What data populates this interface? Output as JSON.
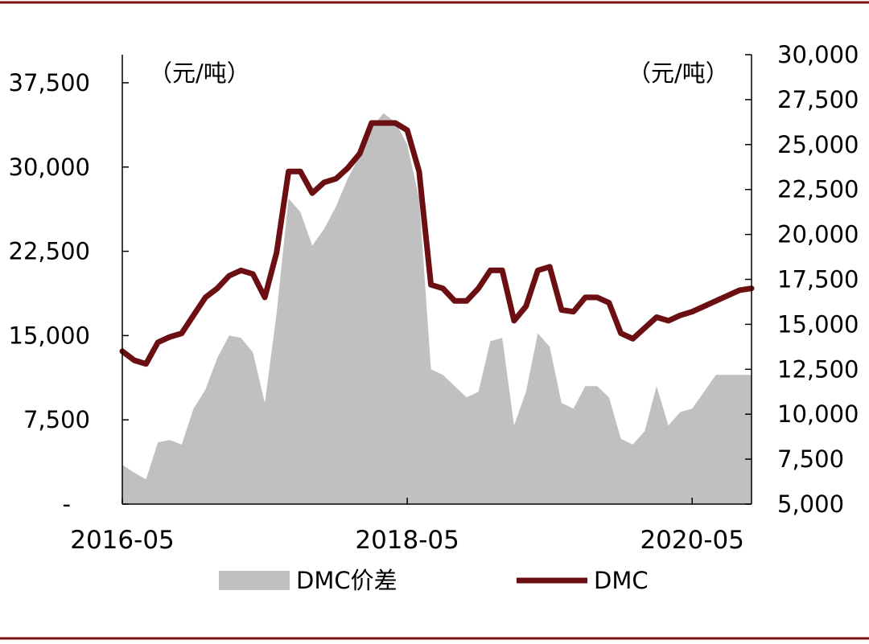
{
  "colors": {
    "frame": "#7b1416",
    "spread_fill": "#c0c0c0",
    "dmc_line": "#6b0f12",
    "axis": "#000000"
  },
  "chart_data": {
    "type": "area+line",
    "title": "",
    "x_ticks": [
      "2016-05",
      "2018-05",
      "2020-05"
    ],
    "left_axis": {
      "unit": "（元/吨）",
      "ylim": [
        0,
        40000
      ],
      "ticks": [
        {
          "value": 0,
          "label": "-"
        },
        {
          "value": 7500,
          "label": "7,500"
        },
        {
          "value": 15000,
          "label": "15,000"
        },
        {
          "value": 22500,
          "label": "22,500"
        },
        {
          "value": 30000,
          "label": "30,000"
        },
        {
          "value": 37500,
          "label": "37,500"
        }
      ]
    },
    "right_axis": {
      "unit": "（元/吨）",
      "ylim": [
        5000,
        30000
      ],
      "ticks": [
        {
          "value": 5000,
          "label": "5,000"
        },
        {
          "value": 7500,
          "label": "7,500"
        },
        {
          "value": 10000,
          "label": "10,000"
        },
        {
          "value": 12500,
          "label": "12,500"
        },
        {
          "value": 15000,
          "label": "15,000"
        },
        {
          "value": 17500,
          "label": "17,500"
        },
        {
          "value": 20000,
          "label": "20,000"
        },
        {
          "value": 22500,
          "label": "22,500"
        },
        {
          "value": 25000,
          "label": "25,000"
        },
        {
          "value": 27500,
          "label": "27,500"
        },
        {
          "value": 30000,
          "label": "30,000"
        }
      ]
    },
    "legend": {
      "placement": "bottom",
      "items": [
        {
          "name": "DMC价差",
          "style": "area"
        },
        {
          "name": "DMC",
          "style": "line"
        }
      ]
    },
    "series": [
      {
        "name": "DMC价差",
        "axis": "left",
        "type": "area",
        "x": [
          "2016-05",
          "2016-06",
          "2016-07",
          "2016-08",
          "2016-09",
          "2016-10",
          "2016-11",
          "2016-12",
          "2017-01",
          "2017-02",
          "2017-03",
          "2017-04",
          "2017-05",
          "2017-06",
          "2017-07",
          "2017-08",
          "2017-09",
          "2017-10",
          "2017-11",
          "2017-12",
          "2018-01",
          "2018-02",
          "2018-03",
          "2018-04",
          "2018-05",
          "2018-06",
          "2018-07",
          "2018-08",
          "2018-09",
          "2018-10",
          "2018-11",
          "2018-12",
          "2019-01",
          "2019-02",
          "2019-03",
          "2019-04",
          "2019-05",
          "2019-06",
          "2019-07",
          "2019-08",
          "2019-09",
          "2019-10",
          "2019-11",
          "2019-12",
          "2020-01",
          "2020-02",
          "2020-03",
          "2020-04",
          "2020-05",
          "2020-06",
          "2020-07",
          "2020-08",
          "2020-09",
          "2020-10"
        ],
        "values": [
          3500,
          2800,
          2200,
          5500,
          5700,
          5300,
          8500,
          10200,
          13000,
          15000,
          14800,
          13500,
          9000,
          17000,
          27200,
          26000,
          23000,
          24500,
          26500,
          29000,
          31000,
          33500,
          34800,
          34000,
          32000,
          27200,
          12000,
          11500,
          10500,
          9500,
          10000,
          14500,
          14800,
          7000,
          10000,
          15200,
          14000,
          9000,
          8500,
          10500,
          10500,
          9500,
          5800,
          5300,
          6500,
          10500,
          7000,
          8200,
          8500,
          10000,
          11500,
          11500,
          11500,
          11500
        ],
        "x_full": [
          "2016-05",
          "2016-06",
          "2016-07",
          "2016-08",
          "2016-09",
          "2016-10",
          "2016-11",
          "2016-12",
          "2017-01",
          "2017-02",
          "2017-03",
          "2017-04",
          "2017-05",
          "2017-06",
          "2017-07",
          "2017-08",
          "2017-09",
          "2017-10",
          "2017-11",
          "2017-12",
          "2018-01",
          "2018-02",
          "2018-03",
          "2018-04",
          "2018-05",
          "2018-06",
          "2018-07",
          "2018-08",
          "2018-09",
          "2018-10",
          "2018-11",
          "2018-12",
          "2019-01",
          "2019-02",
          "2019-03",
          "2019-04",
          "2019-05",
          "2019-06",
          "2019-07",
          "2019-08",
          "2019-09",
          "2019-10",
          "2019-11",
          "2019-12",
          "2020-01",
          "2020-02",
          "2020-03",
          "2020-04",
          "2020-05",
          "2020-06",
          "2020-07",
          "2020-08",
          "2020-09",
          "2020-10"
        ]
      },
      {
        "name": "DMC",
        "axis": "right",
        "type": "line",
        "x": [
          "2016-05",
          "2016-06",
          "2016-07",
          "2016-08",
          "2016-09",
          "2016-10",
          "2016-11",
          "2016-12",
          "2017-01",
          "2017-02",
          "2017-03",
          "2017-04",
          "2017-05",
          "2017-06",
          "2017-07",
          "2017-08",
          "2017-09",
          "2017-10",
          "2017-11",
          "2017-12",
          "2018-01",
          "2018-02",
          "2018-03",
          "2018-04",
          "2018-05",
          "2018-06",
          "2018-07",
          "2018-08",
          "2018-09",
          "2018-10",
          "2018-11",
          "2018-12",
          "2019-01",
          "2019-02",
          "2019-03",
          "2019-04",
          "2019-05",
          "2019-06",
          "2019-07",
          "2019-08",
          "2019-09",
          "2019-10",
          "2019-11",
          "2019-12",
          "2020-01",
          "2020-02",
          "2020-03",
          "2020-04",
          "2020-05",
          "2020-06",
          "2020-07",
          "2020-08",
          "2020-09",
          "2020-10"
        ],
        "values": [
          13500,
          13000,
          12800,
          14000,
          14300,
          14500,
          15500,
          16500,
          17000,
          17700,
          18000,
          17800,
          16500,
          19000,
          23500,
          23500,
          22300,
          22900,
          23100,
          23700,
          24500,
          26200,
          26200,
          26200,
          25800,
          23500,
          17200,
          17000,
          16300,
          16300,
          17000,
          18000,
          18000,
          15200,
          16000,
          18000,
          18200,
          15800,
          15700,
          16500,
          16500,
          16200,
          14500,
          14200,
          14800,
          15400,
          15200,
          15500,
          15700,
          16000,
          16300,
          16600,
          16900,
          17000
        ]
      }
    ]
  }
}
